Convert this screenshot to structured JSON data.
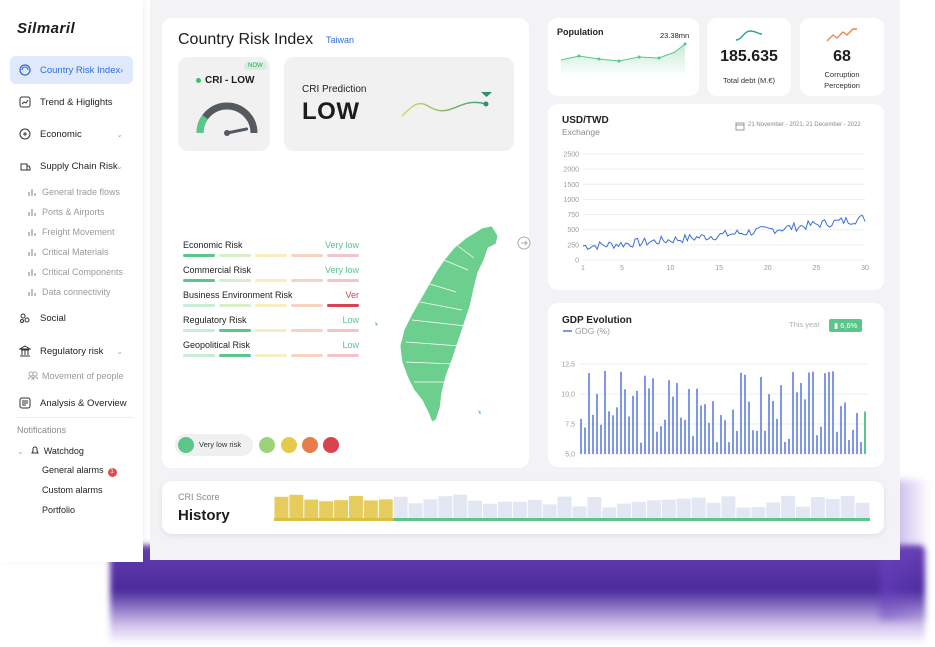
{
  "app": {
    "logo": "Silmaril"
  },
  "sidebar": {
    "items": [
      {
        "label": "Country Risk Index",
        "icon": "globe-icon"
      },
      {
        "label": "Trend & Higlights",
        "icon": "trend-icon"
      },
      {
        "label": "Economic",
        "icon": "economic-icon"
      },
      {
        "label": "Supply Chain Risk",
        "icon": "supply-chain-icon"
      },
      {
        "label": "Social",
        "icon": "social-icon"
      },
      {
        "label": "Regulatory risk",
        "icon": "regulatory-icon"
      },
      {
        "label": "Analysis & Overview",
        "icon": "analysis-icon"
      }
    ],
    "supply_sub": [
      "General trade flows",
      "Ports & Airports",
      "Freight Movement",
      "Critical Materials",
      "Critical Components",
      "Data connectivity"
    ],
    "regulatory_sub": [
      "Movement of people"
    ],
    "notifications": "Notifications",
    "watchdog": "Watchdog",
    "watchdog_sub": [
      "General alarms",
      "Custom alarms",
      "Portfolio"
    ],
    "alarm_count": "1"
  },
  "cri": {
    "title": "Country Risk Index",
    "country": "Taiwan",
    "now_badge": "NOW",
    "status": "CRI - LOW",
    "prediction_label": "CRI Prediction",
    "prediction_value": "LOW",
    "gauge_level": 0.2,
    "risks": [
      {
        "name": "Economic Risk",
        "value": "Very low",
        "level": 1,
        "color": "#5bc58a"
      },
      {
        "name": "Commercial Risk",
        "value": "Very low",
        "level": 1,
        "color": "#5bc58a"
      },
      {
        "name": "Business Environment Risk",
        "value": "Ver",
        "level": 5,
        "color": "#d9434f"
      },
      {
        "name": "Regulatory Risk",
        "value": "Low",
        "level": 2,
        "color": "#5bc58a"
      },
      {
        "name": "Geopolitical Risk",
        "value": "Low",
        "level": 2,
        "color": "#5bc58a"
      }
    ],
    "legend_label": "Very low risk",
    "legend_colors": [
      "#5bc58a",
      "#9ed27a",
      "#e6c94a",
      "#e97c4f",
      "#d9434f"
    ]
  },
  "population": {
    "title": "Population",
    "value": "23.38mn"
  },
  "debt": {
    "value": "185.635",
    "caption": "Total debt (M.€)"
  },
  "corruption": {
    "value": "68",
    "caption1": "Corruption",
    "caption2": "Perception"
  },
  "chart_data": [
    {
      "type": "line",
      "title": "USD/TWD",
      "subtitle": "Exchange",
      "date_range": "21  November - 2021, 21 December - 2022",
      "x_ticks": [
        1,
        5,
        10,
        15,
        20,
        25,
        30
      ],
      "y_ticks": [
        0,
        250,
        500,
        750,
        1000,
        1500,
        2000,
        2500
      ],
      "ylim": [
        0,
        2500
      ],
      "xlim": [
        1,
        30
      ]
    },
    {
      "type": "bar",
      "title": "GDP Evolution",
      "series": [
        {
          "name": "GDG (%)"
        }
      ],
      "this_year_label": "This year",
      "this_year_value": "6,6%",
      "y_ticks": [
        "5,0",
        "7,5",
        "10,0",
        "12,5"
      ],
      "ylim": [
        5,
        13
      ]
    }
  ],
  "history": {
    "label": "CRI Score",
    "title": "History"
  }
}
